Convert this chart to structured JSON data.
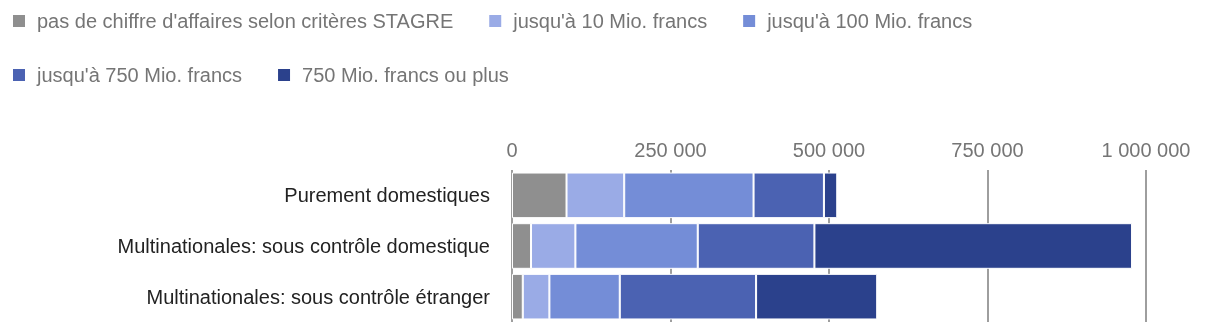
{
  "chart_data": {
    "type": "bar",
    "orientation": "horizontal",
    "stacked": true,
    "categories": [
      "Purement domestiques",
      "Multinationales: sous contrôle domestique",
      "Multinationales: sous contrôle étranger"
    ],
    "series": [
      {
        "name": "pas de chiffre d'affaires selon critères STAGRE",
        "color": "#8f8f8f",
        "values": [
          86000,
          30000,
          17000
        ]
      },
      {
        "name": "jusqu'à 10 Mio. francs",
        "color": "#9aabe6",
        "values": [
          91000,
          70000,
          42000
        ]
      },
      {
        "name": "jusqu'à 100 Mio. francs",
        "color": "#748dd7",
        "values": [
          204000,
          193000,
          111000
        ]
      },
      {
        "name": "jusqu'à 750 Mio. francs",
        "color": "#4b62b2",
        "values": [
          111000,
          184000,
          215000
        ]
      },
      {
        "name": "750 Mio. francs ou plus",
        "color": "#2b418c",
        "values": [
          21000,
          501000,
          191000
        ]
      }
    ],
    "xlim": [
      0,
      1000000
    ],
    "xticks": [
      0,
      {
        "value": 250000,
        "label": "250 000"
      },
      {
        "value": 500000,
        "label": "500 000"
      },
      {
        "value": 750000,
        "label": "750 000"
      },
      {
        "value": 1000000,
        "label": "1 000 000"
      }
    ],
    "grid": "x",
    "legend": "top left"
  }
}
